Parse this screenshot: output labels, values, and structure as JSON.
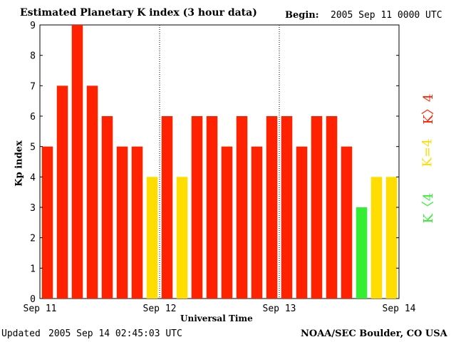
{
  "header": {
    "title": "Estimated Planetary K index (3 hour data)",
    "begin_label": "Begin:",
    "begin_value": "2005 Sep 11 0000 UTC"
  },
  "footer": {
    "updated_label": "Updated",
    "updated_value": "2005 Sep 14 02:45:03 UTC",
    "credit": "NOAA/SEC Boulder, CO USA"
  },
  "legend": {
    "high": "K〉4",
    "equal": "K=4",
    "low": "K〈4"
  },
  "colors": {
    "high": "#ff2200",
    "equal": "#ffdd00",
    "low": "#33ee33"
  },
  "chart_data": {
    "type": "bar",
    "title": "Estimated Planetary K index (3 hour data)",
    "xlabel": "Universal Time",
    "ylabel": "Kp index",
    "ylim": [
      0,
      9
    ],
    "yticks": [
      "0",
      "1",
      "2",
      "3",
      "4",
      "5",
      "6",
      "7",
      "8",
      "9"
    ],
    "xticks": [
      "Sep 11",
      "Sep 12",
      "Sep 13",
      "Sep 14"
    ],
    "values": [
      5,
      7,
      9,
      7,
      6,
      5,
      5,
      4,
      6,
      4,
      6,
      6,
      5,
      6,
      5,
      6,
      6,
      5,
      6,
      6,
      5,
      3,
      4,
      4
    ],
    "categories": [
      "Sep 11 00",
      "Sep 11 03",
      "Sep 11 06",
      "Sep 11 09",
      "Sep 11 12",
      "Sep 11 15",
      "Sep 11 18",
      "Sep 11 21",
      "Sep 12 00",
      "Sep 12 03",
      "Sep 12 06",
      "Sep 12 09",
      "Sep 12 12",
      "Sep 12 15",
      "Sep 12 18",
      "Sep 12 21",
      "Sep 13 00",
      "Sep 13 03",
      "Sep 13 06",
      "Sep 13 09",
      "Sep 13 12",
      "Sep 13 15",
      "Sep 13 18",
      "Sep 13 21"
    ]
  }
}
